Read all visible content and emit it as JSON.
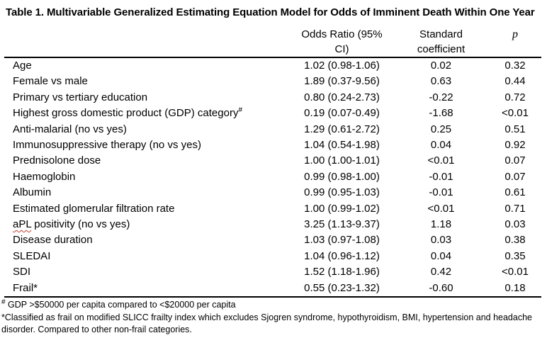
{
  "title": "Table 1. Multivariable Generalized Estimating Equation Model for Odds of Imminent Death Within One Year",
  "table": {
    "columns": {
      "label": "",
      "odds_ratio": "Odds Ratio (95% CI)",
      "coefficient": "Standard coefficient",
      "p": "p"
    },
    "rows": [
      {
        "label": "Age",
        "or": "1.02 (0.98-1.06)",
        "coef": "0.02",
        "p": "0.32"
      },
      {
        "label": "Female vs male",
        "or": "1.89 (0.37-9.56)",
        "coef": "0.63",
        "p": "0.44"
      },
      {
        "label": "Primary vs tertiary education",
        "or": "0.80 (0.24-2.73)",
        "coef": "-0.22",
        "p": "0.72"
      },
      {
        "label": "Highest gross domestic product (GDP) category",
        "sup": "#",
        "or": "0.19 (0.07-0.49)",
        "coef": "-1.68",
        "p": "<0.01"
      },
      {
        "label": "Anti-malarial (no vs yes)",
        "or": "1.29 (0.61-2.72)",
        "coef": "0.25",
        "p": "0.51"
      },
      {
        "label": "Immunosuppressive therapy (no vs yes)",
        "or": "1.04 (0.54-1.98)",
        "coef": "0.04",
        "p": "0.92"
      },
      {
        "label": "Prednisolone dose",
        "or": "1.00 (1.00-1.01)",
        "coef": "<0.01",
        "p": "0.07"
      },
      {
        "label": "Haemoglobin",
        "or": "0.99 (0.98-1.00)",
        "coef": "-0.01",
        "p": "0.07"
      },
      {
        "label": "Albumin",
        "or": "0.99 (0.95-1.03)",
        "coef": "-0.01",
        "p": "0.61"
      },
      {
        "label": "Estimated glomerular filtration rate",
        "or": "1.00 (0.99-1.02)",
        "coef": "<0.01",
        "p": "0.71"
      },
      {
        "squiggle": "aPL",
        "label_rest": " positivity (no vs yes)",
        "or": "3.25 (1.13-9.37)",
        "coef": "1.18",
        "p": "0.03"
      },
      {
        "label": "Disease duration",
        "or": "1.03 (0.97-1.08)",
        "coef": "0.03",
        "p": "0.38"
      },
      {
        "label": "SLEDAI",
        "or": "1.04 (0.96-1.12)",
        "coef": "0.04",
        "p": "0.35"
      },
      {
        "label": "SDI",
        "or": "1.52 (1.18-1.96)",
        "coef": "0.42",
        "p": "<0.01"
      },
      {
        "label": "Frail*",
        "or": "0.55 (0.23-1.32)",
        "coef": "-0.60",
        "p": "0.18"
      }
    ]
  },
  "footnotes": [
    {
      "sup": "#",
      "text": " GDP >$50000 per capita compared to <$20000 per capita"
    },
    {
      "sup": "",
      "text": "*Classified as frail on modified SLICC frailty index which excludes Sjogren syndrome, hypothyroidism, BMI, hypertension and headache disorder. Compared to other non-frail categories."
    }
  ],
  "colors": {
    "text": "#000000",
    "rule": "#000000",
    "spellcheck_squiggle": "#c0392b",
    "background": "#ffffff"
  }
}
